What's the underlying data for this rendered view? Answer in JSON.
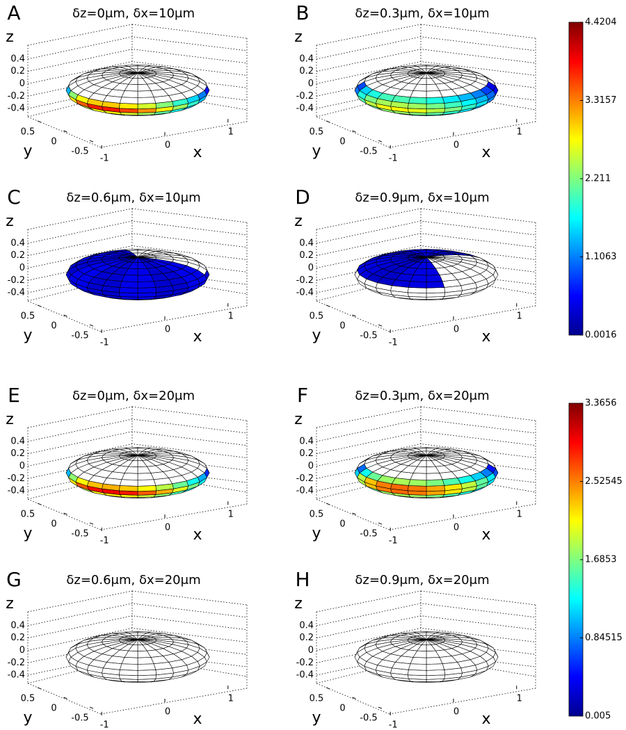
{
  "chart_data": [
    {
      "type": "ellipsoid",
      "label": "A",
      "title": "δz=0μm, δx=10μm",
      "xlabel": "x",
      "ylabel": "y",
      "zlabel": "z",
      "xlim": [
        -1.3,
        1.3
      ],
      "ylim": [
        -0.8,
        0.8
      ],
      "zlim": [
        -0.5,
        0.5
      ],
      "xticks": [
        -1,
        0,
        1
      ],
      "yticks": [
        -0.5,
        0,
        0.5
      ],
      "zticks": [
        -0.4,
        -0.2,
        0,
        0.2,
        0.4
      ]
    },
    {
      "type": "ellipsoid",
      "label": "B",
      "title": "δz=0.3μm, δx=10μm",
      "xlabel": "x",
      "ylabel": "y",
      "zlabel": "z",
      "xlim": [
        -1.3,
        1.3
      ],
      "ylim": [
        -0.8,
        0.8
      ],
      "zlim": [
        -0.5,
        0.5
      ],
      "xticks": [
        -1,
        0,
        1
      ],
      "yticks": [
        -0.5,
        0,
        0.5
      ],
      "zticks": [
        -0.4,
        -0.2,
        0,
        0.2,
        0.4
      ]
    },
    {
      "type": "ellipsoid",
      "label": "C",
      "title": "δz=0.6μm, δx=10μm",
      "xlabel": "x",
      "ylabel": "y",
      "zlabel": "z",
      "xlim": [
        -1.3,
        1.3
      ],
      "ylim": [
        -0.8,
        0.8
      ],
      "zlim": [
        -0.5,
        0.5
      ],
      "xticks": [
        -1,
        0,
        1
      ],
      "yticks": [
        -0.5,
        0,
        0.5
      ],
      "zticks": [
        -0.4,
        -0.2,
        0,
        0.2,
        0.4
      ]
    },
    {
      "type": "ellipsoid",
      "label": "D",
      "title": "δz=0.9μm, δx=10μm",
      "xlabel": "x",
      "ylabel": "y",
      "zlabel": "z",
      "xlim": [
        -1.3,
        1.3
      ],
      "ylim": [
        -0.8,
        0.8
      ],
      "zlim": [
        -0.5,
        0.5
      ],
      "xticks": [
        -1,
        0,
        1
      ],
      "yticks": [
        -0.5,
        0,
        0.5
      ],
      "zticks": [
        -0.4,
        -0.2,
        0,
        0.2,
        0.4
      ]
    },
    {
      "type": "ellipsoid",
      "label": "E",
      "title": "δz=0μm, δx=20μm",
      "xlabel": "x",
      "ylabel": "y",
      "zlabel": "z",
      "xlim": [
        -1.3,
        1.3
      ],
      "ylim": [
        -0.8,
        0.8
      ],
      "zlim": [
        -0.5,
        0.5
      ],
      "xticks": [
        -1,
        0,
        1
      ],
      "yticks": [
        -0.5,
        0,
        0.5
      ],
      "zticks": [
        -0.4,
        -0.2,
        0,
        0.2,
        0.4
      ]
    },
    {
      "type": "ellipsoid",
      "label": "F",
      "title": "δz=0.3μm, δx=20μm",
      "xlabel": "x",
      "ylabel": "y",
      "zlabel": "z",
      "xlim": [
        -1.3,
        1.3
      ],
      "ylim": [
        -0.8,
        0.8
      ],
      "zlim": [
        -0.5,
        0.5
      ],
      "xticks": [
        -1,
        0,
        1
      ],
      "yticks": [
        -0.5,
        0,
        0.5
      ],
      "zticks": [
        -0.4,
        -0.2,
        0,
        0.2,
        0.4
      ]
    },
    {
      "type": "ellipsoid",
      "label": "G",
      "title": "δz=0.6μm, δx=20μm",
      "xlabel": "x",
      "ylabel": "y",
      "zlabel": "z",
      "xlim": [
        -1.3,
        1.3
      ],
      "ylim": [
        -0.8,
        0.8
      ],
      "zlim": [
        -0.5,
        0.5
      ],
      "xticks": [
        -1,
        0,
        1
      ],
      "yticks": [
        -0.5,
        0,
        0.5
      ],
      "zticks": [
        -0.4,
        -0.2,
        0,
        0.2,
        0.4
      ]
    },
    {
      "type": "ellipsoid",
      "label": "H",
      "title": "δz=0.9μm, δx=20μm",
      "xlabel": "x",
      "ylabel": "y",
      "zlabel": "z",
      "xlim": [
        -1.3,
        1.3
      ],
      "ylim": [
        -0.8,
        0.8
      ],
      "zlim": [
        -0.5,
        0.5
      ],
      "xticks": [
        -1,
        0,
        1
      ],
      "yticks": [
        -0.5,
        0,
        0.5
      ],
      "zticks": [
        -0.4,
        -0.2,
        0,
        0.2,
        0.4
      ]
    },
    {
      "type": "colorbar",
      "colormap": "jet",
      "clim": [
        0.0016,
        4.4204
      ],
      "cticks": [
        0.0016,
        1.1063,
        2.211,
        3.3157,
        4.4204
      ]
    },
    {
      "type": "colorbar",
      "colormap": "jet",
      "clim": [
        0.005,
        3.3656
      ],
      "cticks": [
        0.005,
        0.84515,
        1.6853,
        2.52545,
        3.3656
      ]
    }
  ]
}
